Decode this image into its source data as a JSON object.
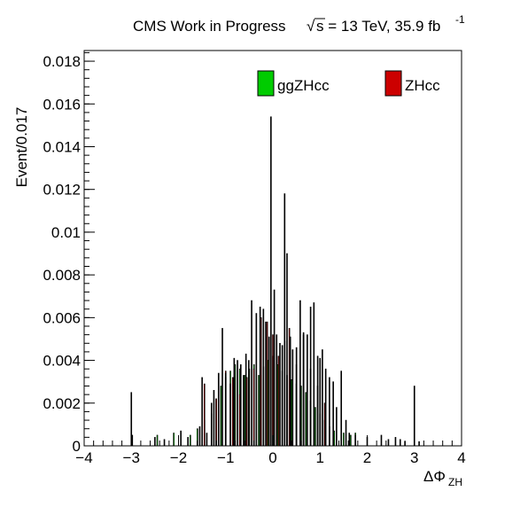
{
  "chart_data": {
    "type": "bar",
    "title": {
      "text": "CMS Work in Progress",
      "sqrt_symbol": "√",
      "energy": "s = 13 TeV, 35.9 fb",
      "superscript": "-1"
    },
    "xlabel": "ΔΦ",
    "xlabel_sub": "ZH",
    "ylabel": "Event/0.017",
    "xlim": [
      -4,
      4
    ],
    "ylim": [
      0,
      0.0185
    ],
    "xticks": [
      "−4",
      "−3",
      "−2",
      "−1",
      "0",
      "1",
      "2",
      "3",
      "4"
    ],
    "yticks": [
      "0",
      "0.002",
      "0.004",
      "0.006",
      "0.008",
      "0.01",
      "0.012",
      "0.014",
      "0.016",
      "0.018"
    ],
    "bin_width": 0.017,
    "legend_position": "top-right",
    "series": [
      {
        "name": "ggZHcc",
        "color": "#00cc00",
        "points": [
          [
            -2.45,
            0.0005
          ],
          [
            -2.1,
            0.0006
          ],
          [
            -1.75,
            0.0005
          ],
          [
            -1.6,
            0.0008
          ],
          [
            -1.45,
            0.0012
          ],
          [
            -1.3,
            0.0015
          ],
          [
            -1.2,
            0.0022
          ],
          [
            -1.1,
            0.0028
          ],
          [
            -1.0,
            0.0032
          ],
          [
            -0.9,
            0.0035
          ],
          [
            -0.8,
            0.0038
          ],
          [
            -0.7,
            0.0036
          ],
          [
            -0.6,
            0.0033
          ],
          [
            -0.5,
            0.0036
          ],
          [
            -0.4,
            0.0038
          ],
          [
            -0.3,
            0.0033
          ],
          [
            -0.2,
            0.0037
          ],
          [
            -0.1,
            0.004
          ],
          [
            0.0,
            0.0042
          ],
          [
            0.1,
            0.0038
          ],
          [
            0.2,
            0.0035
          ],
          [
            0.3,
            0.0033
          ],
          [
            0.4,
            0.0031
          ],
          [
            0.5,
            0.0029
          ],
          [
            0.6,
            0.0028
          ],
          [
            0.7,
            0.0025
          ],
          [
            0.8,
            0.0021
          ],
          [
            0.9,
            0.0018
          ],
          [
            1.0,
            0.0015
          ],
          [
            1.1,
            0.0012
          ],
          [
            1.2,
            0.0009
          ],
          [
            1.3,
            0.0007
          ],
          [
            1.5,
            0.0006
          ],
          [
            1.65,
            0.0005
          ],
          [
            1.75,
            0.0006
          ]
        ]
      },
      {
        "name": "ZHcc",
        "color": "#cc0000",
        "points": [
          [
            -1.45,
            0.0029
          ],
          [
            -1.2,
            0.0022
          ],
          [
            -1.0,
            0.0035
          ],
          [
            -0.85,
            0.0032
          ],
          [
            -0.7,
            0.0024
          ],
          [
            -0.55,
            0.0032
          ],
          [
            -0.4,
            0.0036
          ],
          [
            -0.25,
            0.006
          ],
          [
            -0.12,
            0.0058
          ],
          [
            0.0,
            0.0052
          ],
          [
            0.12,
            0.0042
          ],
          [
            0.25,
            0.0049
          ],
          [
            0.35,
            0.0055
          ],
          [
            0.5,
            0.0038
          ],
          [
            0.65,
            0.0052
          ],
          [
            0.8,
            0.0036
          ],
          [
            0.95,
            0.0028
          ],
          [
            1.1,
            0.002
          ]
        ]
      },
      {
        "name": "",
        "color": "#000000",
        "points": [
          [
            -3.0,
            0.0025
          ],
          [
            -2.98,
            0.0005
          ],
          [
            -2.5,
            0.0004
          ],
          [
            -2.3,
            0.0003
          ],
          [
            -1.95,
            0.0007
          ],
          [
            -1.8,
            0.0004
          ],
          [
            -1.55,
            0.0009
          ],
          [
            -1.5,
            0.0032
          ],
          [
            -1.4,
            0.0006
          ],
          [
            -1.3,
            0.002
          ],
          [
            -1.25,
            0.0026
          ],
          [
            -1.15,
            0.0034
          ],
          [
            -1.07,
            0.0055
          ],
          [
            -1.0,
            0.0034
          ],
          [
            -0.9,
            0.0029
          ],
          [
            -0.82,
            0.0041
          ],
          [
            -0.75,
            0.004
          ],
          [
            -0.68,
            0.0038
          ],
          [
            -0.62,
            0.0033
          ],
          [
            -0.57,
            0.0043
          ],
          [
            -0.51,
            0.004
          ],
          [
            -0.45,
            0.0068
          ],
          [
            -0.35,
            0.0062
          ],
          [
            -0.27,
            0.0065
          ],
          [
            -0.2,
            0.0064
          ],
          [
            -0.15,
            0.0058
          ],
          [
            -0.08,
            0.0051
          ],
          [
            -0.04,
            0.0154
          ],
          [
            0.03,
            0.0073
          ],
          [
            0.08,
            0.0052
          ],
          [
            0.15,
            0.0048
          ],
          [
            0.2,
            0.0047
          ],
          [
            0.25,
            0.0118
          ],
          [
            0.3,
            0.009
          ],
          [
            0.37,
            0.0051
          ],
          [
            0.42,
            0.0045
          ],
          [
            0.5,
            0.0046
          ],
          [
            0.58,
            0.0068
          ],
          [
            0.65,
            0.0053
          ],
          [
            0.73,
            0.0052
          ],
          [
            0.8,
            0.0065
          ],
          [
            0.87,
            0.0067
          ],
          [
            0.95,
            0.0042
          ],
          [
            1.0,
            0.0041
          ],
          [
            1.05,
            0.0045
          ],
          [
            1.12,
            0.0036
          ],
          [
            1.2,
            0.0032
          ],
          [
            1.28,
            0.003
          ],
          [
            1.35,
            0.0018
          ],
          [
            1.45,
            0.0035
          ],
          [
            1.55,
            0.0012
          ],
          [
            1.62,
            0.0006
          ],
          [
            1.75,
            0.0005
          ],
          [
            2.0,
            0.0004
          ],
          [
            2.3,
            0.0005
          ],
          [
            2.45,
            0.0003
          ],
          [
            2.6,
            0.0004
          ],
          [
            2.7,
            0.0003
          ],
          [
            2.8,
            0.0002
          ],
          [
            3.0,
            0.0028
          ],
          [
            3.1,
            0.0002
          ]
        ]
      }
    ]
  }
}
